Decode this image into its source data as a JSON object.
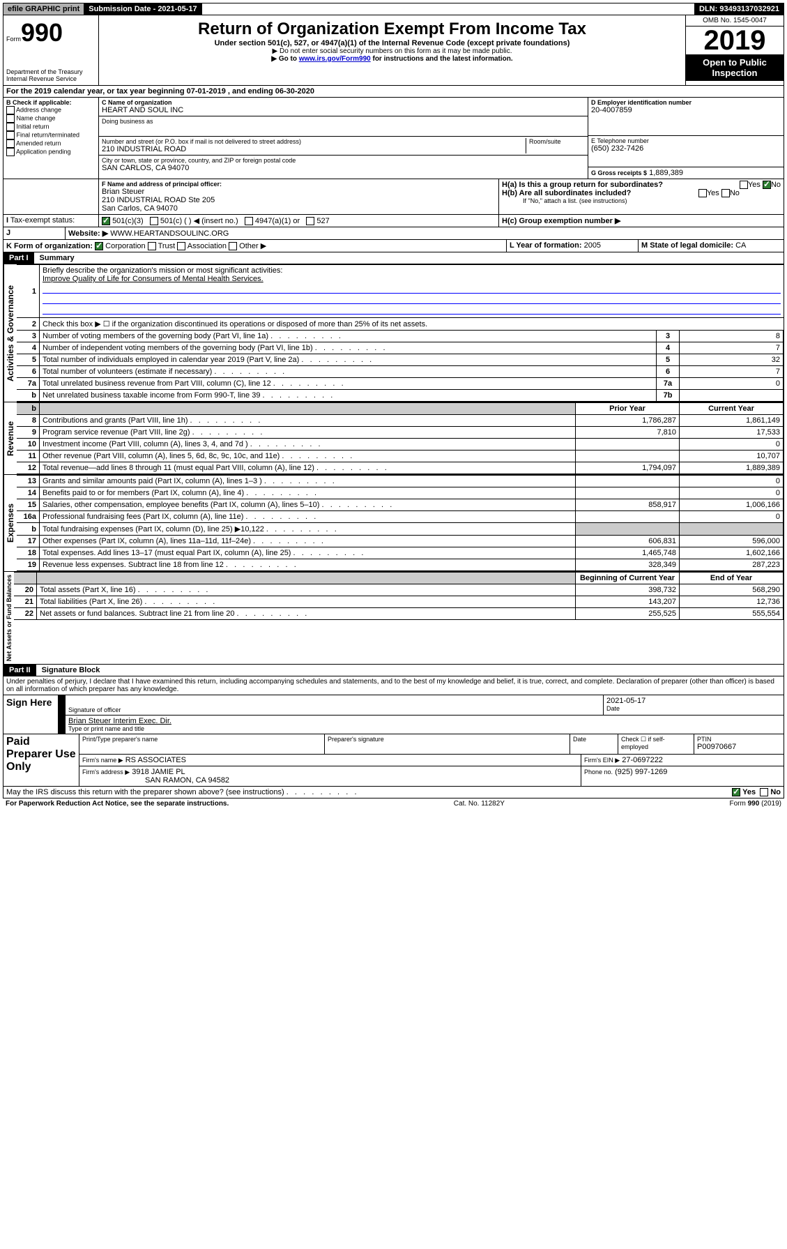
{
  "topbar": {
    "efile": "efile GRAPHIC print",
    "submission": "Submission Date - 2021-05-17",
    "dln": "DLN: 93493137032921"
  },
  "header": {
    "form_small": "Form",
    "form_big": "990",
    "title": "Return of Organization Exempt From Income Tax",
    "subtitle": "Under section 501(c), 527, or 4947(a)(1) of the Internal Revenue Code (except private foundations)",
    "note1": "▶ Do not enter social security numbers on this form as it may be made public.",
    "note2_pre": "▶ Go to ",
    "note2_link": "www.irs.gov/Form990",
    "note2_post": " for instructions and the latest information.",
    "dept": "Department of the Treasury\nInternal Revenue Service",
    "omb": "OMB No. 1545-0047",
    "year": "2019",
    "open": "Open to Public Inspection"
  },
  "line_a": "For the 2019 calendar year, or tax year beginning 07-01-2019    , and ending 06-30-2020",
  "box_b": {
    "label": "B Check if applicable:",
    "items": [
      "Address change",
      "Name change",
      "Initial return",
      "Final return/terminated",
      "Amended return",
      "Application pending"
    ]
  },
  "box_c": {
    "name_label": "C Name of organization",
    "name": "HEART AND SOUL INC",
    "dba_label": "Doing business as",
    "addr_label": "Number and street (or P.O. box if mail is not delivered to street address)",
    "room_label": "Room/suite",
    "addr": "210 INDUSTRIAL ROAD",
    "city_label": "City or town, state or province, country, and ZIP or foreign postal code",
    "city": "SAN CARLOS, CA  94070"
  },
  "box_d": {
    "label": "D Employer identification number",
    "value": "20-4007859"
  },
  "box_e": {
    "label": "E Telephone number",
    "value": "(650) 232-7426"
  },
  "box_g": {
    "label": "G Gross receipts $",
    "value": "1,889,389"
  },
  "box_f": {
    "label": "F  Name and address of principal officer:",
    "name": "Brian Steuer",
    "addr1": "210 INDUSTRIAL ROAD Ste 205",
    "addr2": "San Carlos, CA  94070"
  },
  "box_h": {
    "a": "H(a)  Is this a group return for subordinates?",
    "b": "H(b)  Are all subordinates included?",
    "b_note": "If \"No,\" attach a list. (see instructions)",
    "c": "H(c)  Group exemption number ▶",
    "yes": "Yes",
    "no": "No"
  },
  "tax_exempt": {
    "label": "Tax-exempt status:",
    "opt1": "501(c)(3)",
    "opt2": "501(c) (   ) ◀ (insert no.)",
    "opt3": "4947(a)(1) or",
    "opt4": "527"
  },
  "website": {
    "label": "Website: ▶",
    "value": "WWW.HEARTANDSOULINC.ORG"
  },
  "line_k": {
    "label": "K Form of organization:",
    "corp": "Corporation",
    "trust": "Trust",
    "assoc": "Association",
    "other": "Other ▶"
  },
  "line_l": {
    "label": "L Year of formation:",
    "value": "2005"
  },
  "line_m": {
    "label": "M State of legal domicile:",
    "value": "CA"
  },
  "part1": {
    "header": "Part I",
    "title": "Summary",
    "q1": "Briefly describe the organization's mission or most significant activities:",
    "q1_ans": "Improve Quality of Life for Consumers of Mental Health Services.",
    "q2": "Check this box ▶ ☐  if the organization discontinued its operations or disposed of more than 25% of its net assets.",
    "rows_gov": [
      {
        "n": "3",
        "label": "Number of voting members of the governing body (Part VI, line 1a)",
        "box": "3",
        "val": "8"
      },
      {
        "n": "4",
        "label": "Number of independent voting members of the governing body (Part VI, line 1b)",
        "box": "4",
        "val": "7"
      },
      {
        "n": "5",
        "label": "Total number of individuals employed in calendar year 2019 (Part V, line 2a)",
        "box": "5",
        "val": "32"
      },
      {
        "n": "6",
        "label": "Total number of volunteers (estimate if necessary)",
        "box": "6",
        "val": "7"
      },
      {
        "n": "7a",
        "label": "Total unrelated business revenue from Part VIII, column (C), line 12",
        "box": "7a",
        "val": "0"
      },
      {
        "n": "b",
        "label": "Net unrelated business taxable income from Form 990-T, line 39",
        "box": "7b",
        "val": ""
      }
    ],
    "col_prior": "Prior Year",
    "col_current": "Current Year",
    "rows_rev": [
      {
        "n": "8",
        "label": "Contributions and grants (Part VIII, line 1h)",
        "prior": "1,786,287",
        "curr": "1,861,149"
      },
      {
        "n": "9",
        "label": "Program service revenue (Part VIII, line 2g)",
        "prior": "7,810",
        "curr": "17,533"
      },
      {
        "n": "10",
        "label": "Investment income (Part VIII, column (A), lines 3, 4, and 7d )",
        "prior": "",
        "curr": "0"
      },
      {
        "n": "11",
        "label": "Other revenue (Part VIII, column (A), lines 5, 6d, 8c, 9c, 10c, and 11e)",
        "prior": "",
        "curr": "10,707"
      },
      {
        "n": "12",
        "label": "Total revenue—add lines 8 through 11 (must equal Part VIII, column (A), line 12)",
        "prior": "1,794,097",
        "curr": "1,889,389"
      }
    ],
    "rows_exp": [
      {
        "n": "13",
        "label": "Grants and similar amounts paid (Part IX, column (A), lines 1–3 )",
        "prior": "",
        "curr": "0"
      },
      {
        "n": "14",
        "label": "Benefits paid to or for members (Part IX, column (A), line 4)",
        "prior": "",
        "curr": "0"
      },
      {
        "n": "15",
        "label": "Salaries, other compensation, employee benefits (Part IX, column (A), lines 5–10)",
        "prior": "858,917",
        "curr": "1,006,166"
      },
      {
        "n": "16a",
        "label": "Professional fundraising fees (Part IX, column (A), line 11e)",
        "prior": "",
        "curr": "0"
      },
      {
        "n": "b",
        "label": "Total fundraising expenses (Part IX, column (D), line 25) ▶10,122",
        "prior": "gray",
        "curr": "gray"
      },
      {
        "n": "17",
        "label": "Other expenses (Part IX, column (A), lines 11a–11d, 11f–24e)",
        "prior": "606,831",
        "curr": "596,000"
      },
      {
        "n": "18",
        "label": "Total expenses. Add lines 13–17 (must equal Part IX, column (A), line 25)",
        "prior": "1,465,748",
        "curr": "1,602,166"
      },
      {
        "n": "19",
        "label": "Revenue less expenses. Subtract line 18 from line 12",
        "prior": "328,349",
        "curr": "287,223"
      }
    ],
    "col_begin": "Beginning of Current Year",
    "col_end": "End of Year",
    "rows_net": [
      {
        "n": "20",
        "label": "Total assets (Part X, line 16)",
        "prior": "398,732",
        "curr": "568,290"
      },
      {
        "n": "21",
        "label": "Total liabilities (Part X, line 26)",
        "prior": "143,207",
        "curr": "12,736"
      },
      {
        "n": "22",
        "label": "Net assets or fund balances. Subtract line 21 from line 20",
        "prior": "255,525",
        "curr": "555,554"
      }
    ],
    "vlabel_gov": "Activities & Governance",
    "vlabel_rev": "Revenue",
    "vlabel_exp": "Expenses",
    "vlabel_net": "Net Assets or Fund Balances"
  },
  "part2": {
    "header": "Part II",
    "title": "Signature Block",
    "perjury": "Under penalties of perjury, I declare that I have examined this return, including accompanying schedules and statements, and to the best of my knowledge and belief, it is true, correct, and complete. Declaration of preparer (other than officer) is based on all information of which preparer has any knowledge.",
    "sign_here": "Sign Here",
    "sig_officer": "Signature of officer",
    "date": "Date",
    "date_val": "2021-05-17",
    "name_title": "Brian Steuer  Interim Exec. Dir.",
    "type_name": "Type or print name and title",
    "paid": "Paid Preparer Use Only",
    "prep_name_label": "Print/Type preparer's name",
    "prep_sig_label": "Preparer's signature",
    "date_label": "Date",
    "check_label": "Check ☐ if self-employed",
    "ptin_label": "PTIN",
    "ptin": "P00970667",
    "firm_name_label": "Firm's name    ▶",
    "firm_name": "RS ASSOCIATES",
    "firm_ein_label": "Firm's EIN ▶",
    "firm_ein": "27-0697222",
    "firm_addr_label": "Firm's address ▶",
    "firm_addr": "3918 JAMIE PL",
    "firm_city": "SAN RAMON, CA  94582",
    "phone_label": "Phone no.",
    "phone": "(925) 997-1269",
    "discuss": "May the IRS discuss this return with the preparer shown above? (see instructions)",
    "yes": "Yes",
    "no": "No"
  },
  "footer": {
    "paperwork": "For Paperwork Reduction Act Notice, see the separate instructions.",
    "cat": "Cat. No. 11282Y",
    "form": "Form 990 (2019)"
  }
}
